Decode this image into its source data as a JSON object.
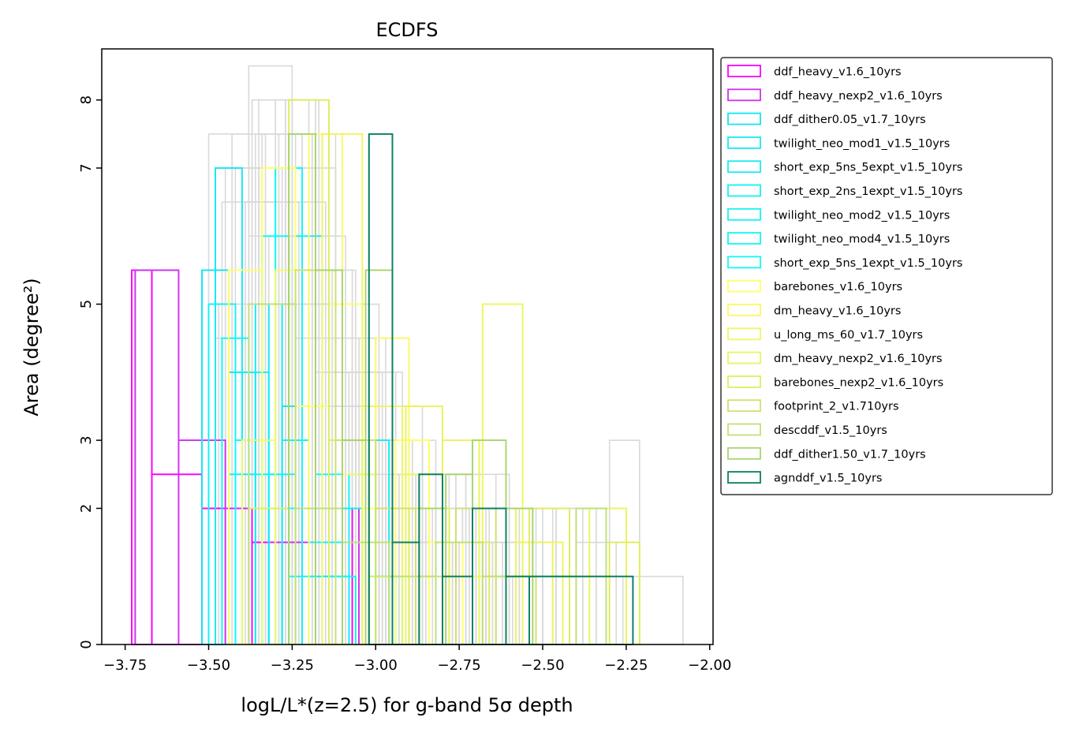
{
  "chart_data": {
    "type": "histogram",
    "title": "ECDFS",
    "xlabel": "logL/L*(z=2.5) for g-band 5σ depth",
    "ylabel": "Area (degree²)",
    "xlim": [
      -3.82,
      -1.99
    ],
    "ylim": [
      0,
      8.75
    ],
    "x_ticks": [
      "−3.75",
      "−3.50",
      "−3.25",
      "−3.00",
      "−2.75",
      "−2.50",
      "−2.25",
      "−2.00"
    ],
    "x_tick_values": [
      -3.75,
      -3.5,
      -3.25,
      -3.0,
      -2.75,
      -2.5,
      -2.25,
      -2.0
    ],
    "y_ticks": [
      "0",
      "2",
      "3",
      "5",
      "7",
      "8"
    ],
    "y_tick_values": [
      0,
      2,
      3,
      5,
      7,
      8
    ],
    "legend_position": "outside upper right",
    "background_series_color": "#d9d9d9",
    "series": [
      {
        "name": "ddf_heavy_v1.6_10yrs",
        "color": "#ff00ff",
        "edges": [
          -3.73,
          -3.67,
          -3.52,
          -3.37,
          -3.22,
          -3.07
        ],
        "heights": [
          5.5,
          2.5,
          2.0,
          1.5,
          2.0
        ]
      },
      {
        "name": "ddf_heavy_nexp2_v1.6_10yrs",
        "color": "#d22ff0",
        "edges": [
          -3.72,
          -3.59,
          -3.45,
          -3.32,
          -3.18,
          -3.05
        ],
        "heights": [
          5.5,
          3.0,
          2.0,
          1.5,
          2.0
        ]
      },
      {
        "name": "ddf_dither0.05_v1.7_10yrs",
        "color": "#14e4f2",
        "edges": [
          -3.52,
          -3.44,
          -3.36,
          -3.28,
          -3.2,
          -3.12
        ],
        "heights": [
          5.5,
          4.0,
          2.0,
          3.5,
          1.0
        ]
      },
      {
        "name": "twilight_neo_mod1_v1.5_10yrs",
        "color": "#19e8f3",
        "edges": [
          -3.48,
          -3.4,
          -3.32,
          -3.24,
          -3.16,
          -3.08
        ],
        "heights": [
          7.0,
          3.0,
          5.0,
          2.0,
          1.0
        ]
      },
      {
        "name": "short_exp_5ns_5expt_v1.5_10yrs",
        "color": "#17ecf4",
        "edges": [
          -3.44,
          -3.36,
          -3.28,
          -3.2,
          -3.12,
          -3.04,
          -2.96
        ],
        "heights": [
          2.5,
          5.0,
          3.0,
          1.5,
          2.0,
          3.0
        ]
      },
      {
        "name": "short_exp_2ns_1expt_v1.5_10yrs",
        "color": "#13f1f5",
        "edges": [
          -3.4,
          -3.32,
          -3.24,
          -3.16,
          -3.08,
          -3.0,
          -2.92
        ],
        "heights": [
          4.0,
          2.5,
          6.0,
          1.5,
          2.5,
          1.0
        ]
      },
      {
        "name": "twilight_neo_mod2_v1.5_10yrs",
        "color": "#12f3f6",
        "edges": [
          -3.5,
          -3.42,
          -3.34,
          -3.26,
          -3.18,
          -3.1
        ],
        "heights": [
          5.0,
          3.0,
          2.0,
          1.0,
          1.5
        ]
      },
      {
        "name": "twilight_neo_mod4_v1.5_10yrs",
        "color": "#10f6f7",
        "edges": [
          -3.46,
          -3.38,
          -3.3,
          -3.22,
          -3.14,
          -3.06
        ],
        "heights": [
          4.5,
          2.5,
          7.0,
          2.0,
          1.0
        ]
      },
      {
        "name": "short_exp_5ns_1expt_v1.5_10yrs",
        "color": "#10faf8",
        "edges": [
          -3.42,
          -3.34,
          -3.26,
          -3.18,
          -3.1,
          -3.02,
          -2.94
        ],
        "heights": [
          3.0,
          6.0,
          2.0,
          2.5,
          1.5,
          1.0
        ]
      },
      {
        "name": "barebones_v1.6_10yrs",
        "color": "#ffff66",
        "edges": [
          -3.44,
          -3.34,
          -3.24,
          -3.14,
          -3.04,
          -2.94,
          -2.84,
          -2.74
        ],
        "heights": [
          5.5,
          7.0,
          3.5,
          5.0,
          2.0,
          3.0,
          1.5
        ]
      },
      {
        "name": "dm_heavy_v1.6_10yrs",
        "color": "#fafa66",
        "edges": [
          -3.4,
          -3.3,
          -3.2,
          -3.1,
          -3.0,
          -2.9,
          -2.8
        ],
        "heights": [
          3.0,
          5.5,
          7.5,
          2.5,
          4.5,
          2.0
        ]
      },
      {
        "name": "u_long_ms_60_v1.7_10yrs",
        "color": "#f0f560",
        "edges": [
          -3.16,
          -3.04,
          -2.92,
          -2.8,
          -2.68,
          -2.56,
          -2.44
        ],
        "heights": [
          7.5,
          3.5,
          2.5,
          1.0,
          5.0,
          1.5
        ]
      },
      {
        "name": "dm_heavy_nexp2_v1.6_10yrs",
        "color": "#eaf45c",
        "edges": [
          -3.02,
          -2.91,
          -2.8,
          -2.69,
          -2.58,
          -2.47,
          -2.36,
          -2.25
        ],
        "heights": [
          1.5,
          3.5,
          3.0,
          2.0,
          1.5,
          1.0,
          2.0
        ]
      },
      {
        "name": "barebones_nexp2_v1.6_10yrs",
        "color": "#e0ed5e",
        "edges": [
          -3.38,
          -3.26,
          -3.14,
          -3.02,
          -2.9,
          -2.78,
          -2.66,
          -2.54,
          -2.42,
          -2.3,
          -2.21
        ],
        "heights": [
          2.0,
          8.0,
          3.0,
          1.0,
          2.0,
          1.5,
          1.0,
          2.0,
          1.0,
          1.5
        ]
      },
      {
        "name": "footprint_2_v1.710yrs",
        "color": "#cfe06f",
        "edges": [
          -3.24,
          -3.12,
          -3.0,
          -2.88,
          -2.76,
          -2.64,
          -2.52
        ],
        "heights": [
          5.5,
          3.0,
          2.0,
          1.0,
          2.0,
          1.0
        ]
      },
      {
        "name": "descddf_v1.5_10yrs",
        "color": "#c2df7a",
        "edges": [
          -3.38,
          -3.24,
          -3.1,
          -2.96,
          -2.82,
          -2.68,
          -2.54,
          -2.4,
          -2.31
        ],
        "heights": [
          5.0,
          2.0,
          1.5,
          1.0,
          1.5,
          1.0,
          1.0,
          2.0
        ]
      },
      {
        "name": "ddf_dither1.50_v1.7_10yrs",
        "color": "#a9d46c",
        "edges": [
          -3.26,
          -3.18,
          -3.1,
          -3.03,
          -2.95,
          -2.87,
          -2.79,
          -2.71,
          -2.61,
          -2.53
        ],
        "heights": [
          7.5,
          5.5,
          3.0,
          5.5,
          1.5,
          2.0,
          2.5,
          3.0,
          2.0
        ]
      },
      {
        "name": "agnddf_v1.5_10yrs",
        "color": "#0a7f62",
        "edges": [
          -3.02,
          -2.95,
          -2.87,
          -2.8,
          -2.71,
          -2.61,
          -2.54,
          -2.23
        ],
        "heights": [
          7.5,
          1.5,
          2.5,
          1.0,
          2.0,
          1.0,
          1.0
        ]
      }
    ],
    "background_series": [
      {
        "edges": [
          -3.5,
          -3.38,
          -3.26,
          -3.14,
          -3.02,
          -2.9,
          -2.78,
          -2.66,
          -2.54,
          -2.42,
          -2.3,
          -2.21
        ],
        "heights": [
          7.5,
          6.0,
          5.0,
          3.5,
          4.5,
          2.5,
          2.0,
          1.5,
          2.0,
          1.0,
          3.0
        ]
      },
      {
        "edges": [
          -3.38,
          -3.25,
          -3.12,
          -2.99,
          -2.86,
          -2.73,
          -2.6,
          -2.47,
          -2.34,
          -2.21,
          -2.08
        ],
        "heights": [
          8.5,
          7.0,
          5.0,
          3.5,
          2.5,
          2.5,
          1.5,
          2.0,
          1.0,
          1.0
        ]
      },
      {
        "edges": [
          -3.46,
          -3.36,
          -3.26,
          -3.16,
          -3.06,
          -2.96,
          -2.86,
          -2.76,
          -2.66,
          -2.56,
          -2.46
        ],
        "heights": [
          6.5,
          7.5,
          6.0,
          4.0,
          3.0,
          2.0,
          2.5,
          1.5,
          1.0,
          2.0
        ]
      },
      {
        "edges": [
          -3.42,
          -3.3,
          -3.18,
          -3.06,
          -2.94,
          -2.82,
          -2.7,
          -2.58,
          -2.46,
          -2.34
        ],
        "heights": [
          7.0,
          8.0,
          5.5,
          4.0,
          3.0,
          2.0,
          1.5,
          1.0,
          2.0
        ]
      },
      {
        "edges": [
          -3.36,
          -3.24,
          -3.12,
          -3.0,
          -2.88,
          -2.76,
          -2.64,
          -2.52,
          -2.4,
          -2.28
        ],
        "heights": [
          6.0,
          5.0,
          4.0,
          2.5,
          2.0,
          2.5,
          2.0,
          1.0,
          1.5
        ]
      },
      {
        "edges": [
          -3.44,
          -3.34,
          -3.24,
          -3.14,
          -3.04,
          -2.94,
          -2.84,
          -2.74,
          -2.64
        ],
        "heights": [
          5.5,
          7.5,
          4.5,
          5.0,
          3.0,
          1.5,
          2.0,
          1.0
        ]
      },
      {
        "edges": [
          -3.4,
          -3.3,
          -3.2,
          -3.1,
          -3.0,
          -2.9,
          -2.8,
          -2.7,
          -2.6,
          -2.5
        ],
        "heights": [
          6.5,
          6.0,
          5.0,
          3.0,
          3.5,
          2.0,
          1.5,
          1.0,
          1.5
        ]
      },
      {
        "edges": [
          -3.3,
          -3.2,
          -3.1,
          -3.0,
          -2.9,
          -2.8,
          -2.7,
          -2.6,
          -2.5,
          -2.4
        ],
        "heights": [
          8.0,
          6.0,
          4.5,
          3.0,
          2.5,
          1.5,
          2.0,
          1.0,
          1.0
        ]
      },
      {
        "edges": [
          -3.48,
          -3.38,
          -3.28,
          -3.18,
          -3.08,
          -2.98,
          -2.88,
          -2.78,
          -2.68,
          -2.58
        ],
        "heights": [
          4.5,
          6.5,
          7.0,
          4.0,
          3.5,
          2.5,
          1.5,
          2.0,
          1.0
        ]
      },
      {
        "edges": [
          -3.34,
          -3.22,
          -3.1,
          -2.98,
          -2.86,
          -2.74,
          -2.62,
          -2.5,
          -2.38,
          -2.26
        ],
        "heights": [
          7.5,
          5.5,
          4.0,
          3.0,
          2.0,
          1.5,
          1.0,
          2.0,
          1.0
        ]
      },
      {
        "edges": [
          -3.45,
          -3.35,
          -3.25,
          -3.15,
          -3.05,
          -2.95,
          -2.85,
          -2.75,
          -2.65
        ],
        "heights": [
          7.0,
          8.0,
          6.5,
          4.5,
          3.0,
          2.0,
          1.0,
          1.5
        ]
      },
      {
        "edges": [
          -3.32,
          -3.22,
          -3.12,
          -3.02,
          -2.92,
          -2.82,
          -2.72,
          -2.62,
          -2.52
        ],
        "heights": [
          6.0,
          7.5,
          5.0,
          4.0,
          2.5,
          2.0,
          1.5,
          1.0
        ]
      },
      {
        "edges": [
          -3.47,
          -3.37,
          -3.27,
          -3.17,
          -3.07,
          -2.97,
          -2.87,
          -2.77,
          -2.67,
          -2.57
        ],
        "heights": [
          5.0,
          7.0,
          8.0,
          5.5,
          3.5,
          2.5,
          1.5,
          1.0,
          2.0
        ]
      },
      {
        "edges": [
          -3.39,
          -3.29,
          -3.19,
          -3.09,
          -2.99,
          -2.89,
          -2.79,
          -2.69,
          -2.59
        ],
        "heights": [
          6.5,
          7.5,
          6.0,
          4.0,
          3.0,
          1.5,
          2.0,
          1.0
        ]
      },
      {
        "edges": [
          -3.43,
          -3.33,
          -3.23,
          -3.13,
          -3.03,
          -2.93,
          -2.83,
          -2.73
        ],
        "heights": [
          7.5,
          6.5,
          5.5,
          3.5,
          2.5,
          2.0,
          1.0
        ]
      },
      {
        "edges": [
          -3.37,
          -3.27,
          -3.17,
          -3.07,
          -2.97,
          -2.87,
          -2.77,
          -2.67,
          -2.57
        ],
        "heights": [
          8.0,
          6.0,
          5.0,
          4.5,
          2.5,
          1.5,
          1.5,
          1.0
        ]
      }
    ]
  }
}
